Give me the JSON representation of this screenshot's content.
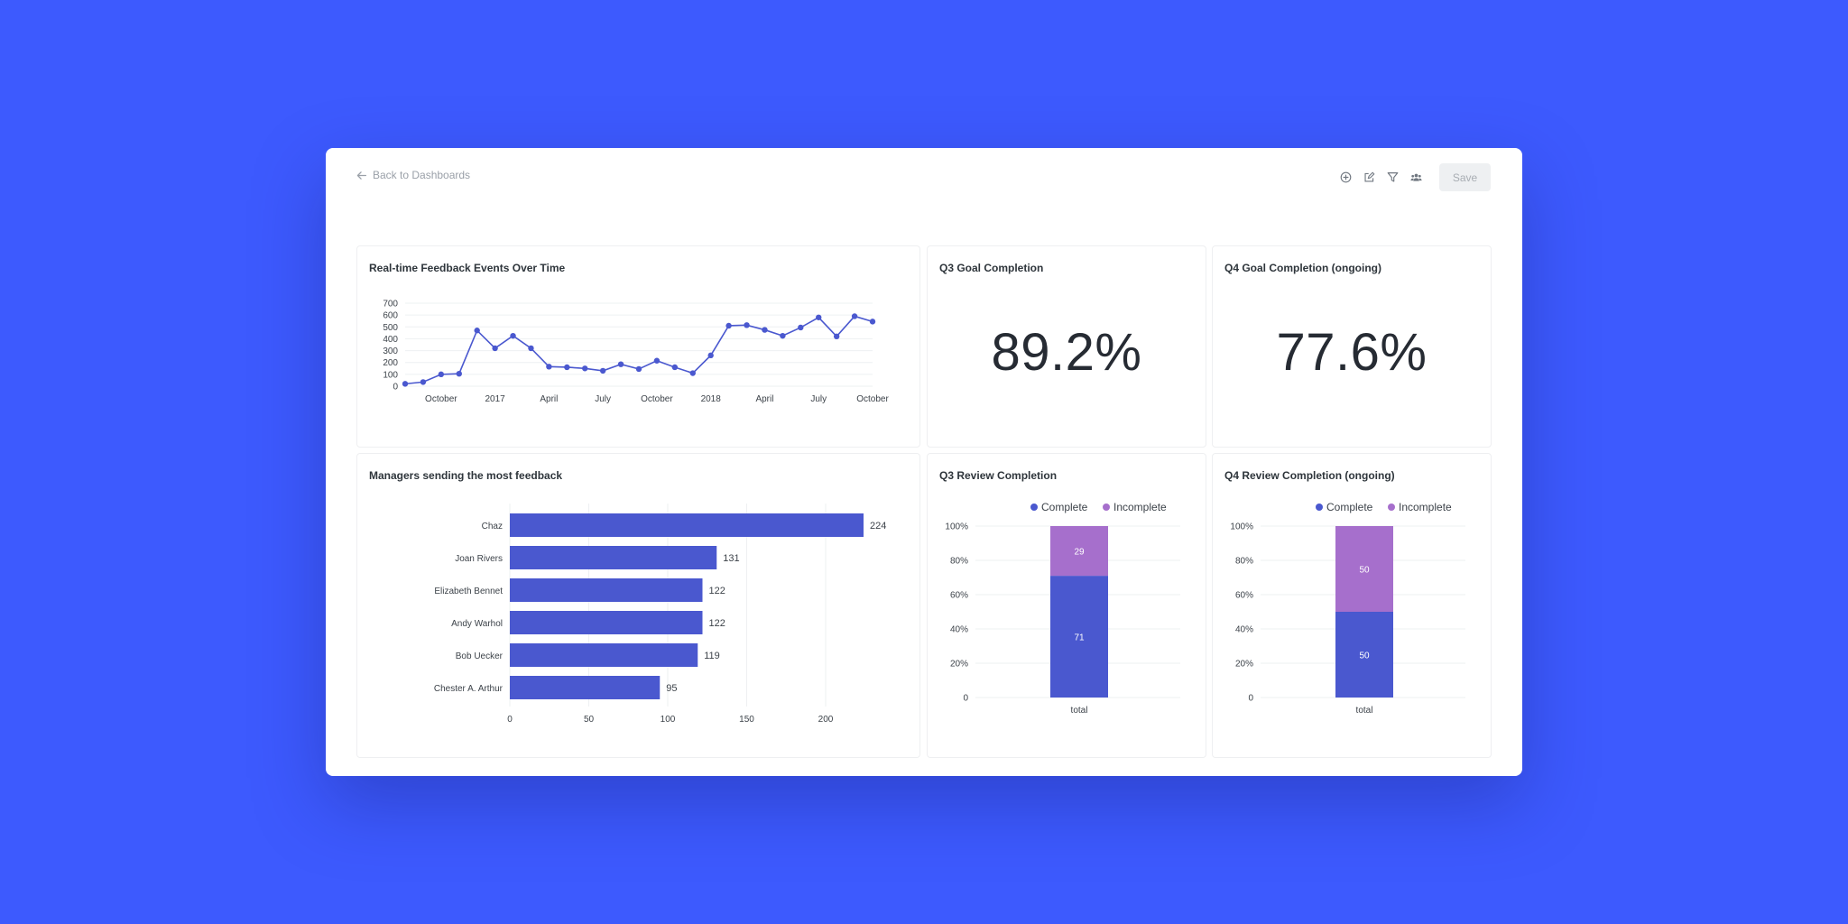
{
  "nav": {
    "back_label": "Back to Dashboards"
  },
  "toolbar": {
    "icons": [
      "plus-circle-icon",
      "edit-icon",
      "filter-icon",
      "users-icon"
    ],
    "save_label": "Save"
  },
  "colors": {
    "background": "#3d5afe",
    "primary": "#4a58cf",
    "secondary": "#a66fcc",
    "text": "#2e353b"
  },
  "cards": {
    "feedback_events": {
      "title": "Real-time Feedback Events Over Time"
    },
    "q3_goal": {
      "title": "Q3 Goal Completion",
      "value": "89.2%"
    },
    "q4_goal": {
      "title": "Q4 Goal Completion (ongoing)",
      "value": "77.6%"
    },
    "managers": {
      "title": "Managers sending the most feedback"
    },
    "q3_review": {
      "title": "Q3 Review Completion"
    },
    "q4_review": {
      "title": "Q4 Review Completion (ongoing)"
    }
  },
  "chart_data": [
    {
      "id": "feedback_events",
      "type": "line",
      "title": "Real-time Feedback Events Over Time",
      "x": [
        "2016-08",
        "2016-09",
        "2016-10",
        "2016-11",
        "2016-12",
        "2017-01",
        "2017-02",
        "2017-03",
        "2017-04",
        "2017-05",
        "2017-06",
        "2017-07",
        "2017-08",
        "2017-09",
        "2017-10",
        "2017-11",
        "2017-12",
        "2018-01",
        "2018-02",
        "2018-03",
        "2018-04",
        "2018-05",
        "2018-06",
        "2018-07",
        "2018-08",
        "2018-09",
        "2018-10"
      ],
      "values": [
        20,
        35,
        100,
        105,
        470,
        320,
        425,
        320,
        165,
        160,
        150,
        130,
        185,
        145,
        215,
        160,
        110,
        260,
        510,
        515,
        475,
        425,
        495,
        580,
        420,
        590,
        545
      ],
      "x_ticks": [
        {
          "at": "2016-10",
          "label": "October"
        },
        {
          "at": "2017-01",
          "label": "2017"
        },
        {
          "at": "2017-04",
          "label": "April"
        },
        {
          "at": "2017-07",
          "label": "July"
        },
        {
          "at": "2017-10",
          "label": "October"
        },
        {
          "at": "2018-01",
          "label": "2018"
        },
        {
          "at": "2018-04",
          "label": "April"
        },
        {
          "at": "2018-07",
          "label": "July"
        },
        {
          "at": "2018-10",
          "label": "October"
        }
      ],
      "y_ticks": [
        0,
        100,
        200,
        300,
        400,
        500,
        600,
        700
      ],
      "ylim": [
        0,
        700
      ],
      "grid": true
    },
    {
      "id": "managers",
      "type": "bar",
      "orientation": "horizontal",
      "title": "Managers sending the most feedback",
      "categories": [
        "Chaz",
        "Joan Rivers",
        "Elizabeth Bennet",
        "Andy Warhol",
        "Bob Uecker",
        "Chester A. Arthur"
      ],
      "values": [
        224,
        131,
        122,
        122,
        119,
        95
      ],
      "x_ticks": [
        0,
        50,
        100,
        150,
        200
      ],
      "xlim": [
        0,
        224
      ],
      "grid": true
    },
    {
      "id": "q3_review",
      "type": "bar",
      "stacked": true,
      "title": "Q3 Review Completion",
      "categories": [
        "total"
      ],
      "series": [
        {
          "name": "Complete",
          "values": [
            71
          ]
        },
        {
          "name": "Incomplete",
          "values": [
            29
          ]
        }
      ],
      "y_ticks": [
        "0",
        "20%",
        "40%",
        "60%",
        "80%",
        "100%"
      ],
      "ylim": [
        0,
        100
      ],
      "legend": "top-center"
    },
    {
      "id": "q4_review",
      "type": "bar",
      "stacked": true,
      "title": "Q4 Review Completion (ongoing)",
      "categories": [
        "total"
      ],
      "series": [
        {
          "name": "Complete",
          "values": [
            50
          ]
        },
        {
          "name": "Incomplete",
          "values": [
            50
          ]
        }
      ],
      "y_ticks": [
        "0",
        "20%",
        "40%",
        "60%",
        "80%",
        "100%"
      ],
      "ylim": [
        0,
        100
      ],
      "legend": "top-center"
    }
  ]
}
